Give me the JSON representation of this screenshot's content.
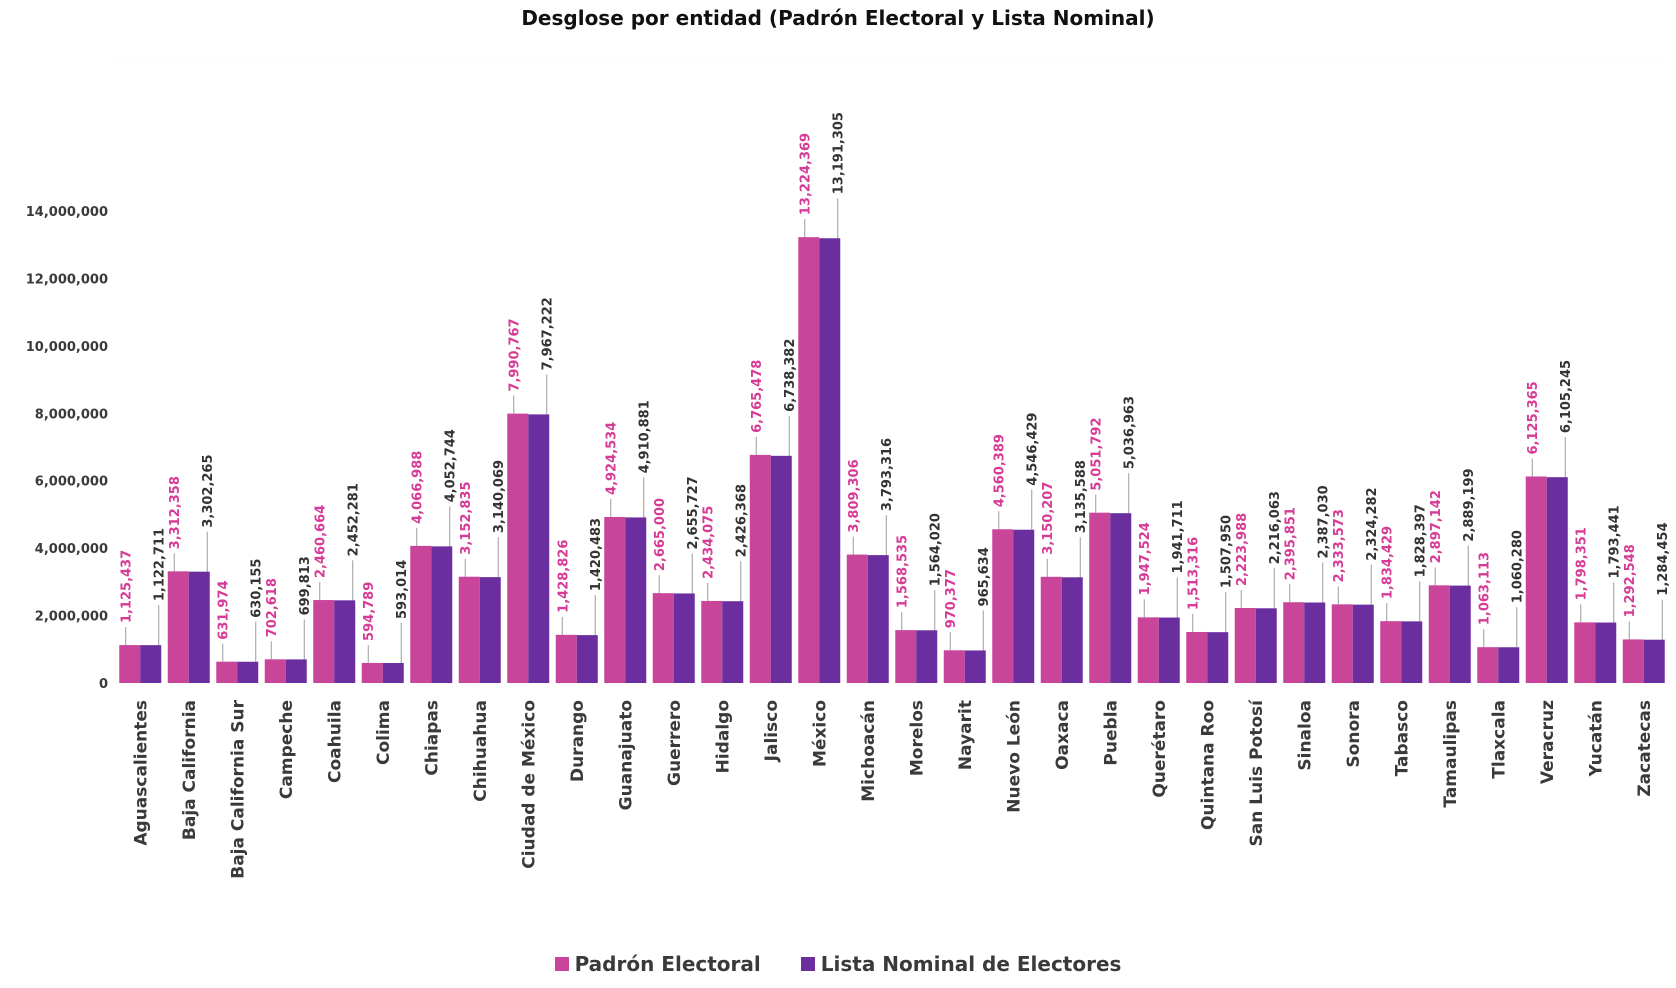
{
  "chart_data": {
    "type": "bar",
    "title": "Desglose por entidad (Padrón Electoral y Lista Nominal)",
    "ylim": [
      0,
      14000000
    ],
    "yticks": [
      "0",
      "2,000,000",
      "4,000,000",
      "6,000,000",
      "8,000,000",
      "10,000,000",
      "12,000,000",
      "14,000,000"
    ],
    "grid": false,
    "legend_position": "bottom",
    "categories": [
      "Aguascalientes",
      "Baja California",
      "Baja California Sur",
      "Campeche",
      "Coahuila",
      "Colima",
      "Chiapas",
      "Chihuahua",
      "Ciudad de México",
      "Durango",
      "Guanajuato",
      "Guerrero",
      "Hidalgo",
      "Jalisco",
      "México",
      "Michoacán",
      "Morelos",
      "Nayarit",
      "Nuevo León",
      "Oaxaca",
      "Puebla",
      "Querétaro",
      "Quintana Roo",
      "San Luis Potosí",
      "Sinaloa",
      "Sonora",
      "Tabasco",
      "Tamaulipas",
      "Tlaxcala",
      "Veracruz",
      "Yucatán",
      "Zacatecas"
    ],
    "series": [
      {
        "name": "Padrón Electoral",
        "color": "#C9459A",
        "label_color": "#D63B95",
        "values": [
          1125437,
          3312358,
          631974,
          702618,
          2460664,
          594789,
          4066988,
          3152835,
          7990767,
          1428826,
          4924534,
          2665000,
          2434075,
          6765478,
          13224369,
          3809306,
          1568535,
          970377,
          4560389,
          3150207,
          5051792,
          1947524,
          1513316,
          2223988,
          2395851,
          2333573,
          1834429,
          2897142,
          1063113,
          6125365,
          1798351,
          1292548
        ],
        "labels": [
          "1,125,437",
          "3,312,358",
          "631,974",
          "702,618",
          "2,460,664",
          "594,789",
          "4,066,988",
          "3,152,835",
          "7,990,767",
          "1,428,826",
          "4,924,534",
          "2,665,000",
          "2,434,075",
          "6,765,478",
          "13,224,369",
          "3,809,306",
          "1,568,535",
          "970,377",
          "4,560,389",
          "3,150,207",
          "5,051,792",
          "1,947,524",
          "1,513,316",
          "2,223,988",
          "2,395,851",
          "2,333,573",
          "1,834,429",
          "2,897,142",
          "1,063,113",
          "6,125,365",
          "1,798,351",
          "1,292,548"
        ]
      },
      {
        "name": "Lista Nominal de Electores",
        "color": "#6A2E9E",
        "label_color": "#333333",
        "values": [
          1122711,
          3302265,
          630155,
          699813,
          2452281,
          593014,
          4052744,
          3140069,
          7967222,
          1420483,
          4910881,
          2655727,
          2426368,
          6738382,
          13191305,
          3793316,
          1564020,
          965634,
          4546429,
          3135588,
          5036963,
          1941711,
          1507950,
          2216063,
          2387030,
          2324282,
          1828397,
          2889199,
          1060280,
          6105245,
          1793441,
          1284454
        ],
        "labels": [
          "1,122,711",
          "3,302,265",
          "630,155",
          "699,813",
          "2,452,281",
          "593,014",
          "4,052,744",
          "3,140,069",
          "7,967,222",
          "1,420,483",
          "4,910,881",
          "2,655,727",
          "2,426,368",
          "6,738,382",
          "13,191,305",
          "3,793,316",
          "1,564,020",
          "965,634",
          "4,546,429",
          "3,135,588",
          "5,036,963",
          "1,941,711",
          "1,507,950",
          "2,216,063",
          "2,387,030",
          "2,324,282",
          "1,828,397",
          "2,889,199",
          "1,060,280",
          "6,105,245",
          "1,793,441",
          "1,284,454"
        ]
      }
    ]
  }
}
